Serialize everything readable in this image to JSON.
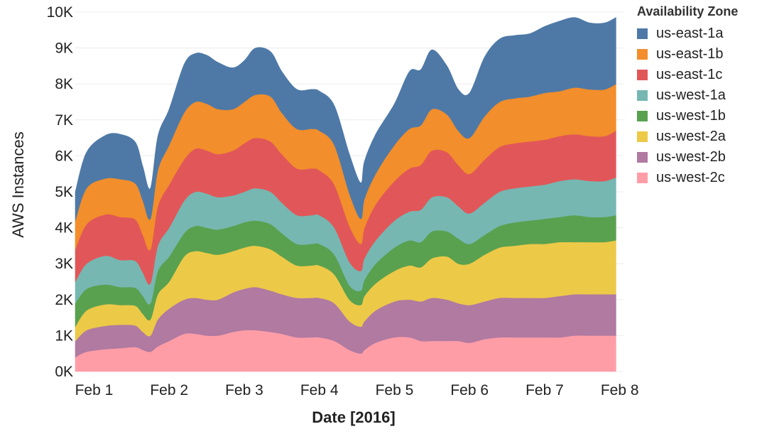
{
  "chart_data": {
    "type": "area",
    "stacked": true,
    "xlabel": "Date [2016]",
    "ylabel": "AWS Instances",
    "ylim": [
      0,
      10000
    ],
    "xlim": [
      -0.25,
      7.05
    ],
    "x_ticks": [
      {
        "value": 0,
        "label": "Feb 1"
      },
      {
        "value": 1,
        "label": "Feb 2"
      },
      {
        "value": 2,
        "label": "Feb 3"
      },
      {
        "value": 3,
        "label": "Feb 4"
      },
      {
        "value": 4,
        "label": "Feb 5"
      },
      {
        "value": 5,
        "label": "Feb 6"
      },
      {
        "value": 6,
        "label": "Feb 7"
      },
      {
        "value": 7,
        "label": "Feb 8"
      }
    ],
    "y_ticks": [
      {
        "value": 0,
        "label": "0K"
      },
      {
        "value": 1000,
        "label": "1K"
      },
      {
        "value": 2000,
        "label": "2K"
      },
      {
        "value": 3000,
        "label": "3K"
      },
      {
        "value": 4000,
        "label": "4K"
      },
      {
        "value": 5000,
        "label": "5K"
      },
      {
        "value": 6000,
        "label": "6K"
      },
      {
        "value": 7000,
        "label": "7K"
      },
      {
        "value": 8000,
        "label": "8K"
      },
      {
        "value": 9000,
        "label": "9K"
      },
      {
        "value": 10000,
        "label": "10K"
      }
    ],
    "x": [
      -0.25,
      -0.1,
      0.15,
      0.35,
      0.55,
      0.65,
      0.75,
      0.85,
      1.0,
      1.2,
      1.35,
      1.5,
      1.65,
      1.85,
      2.0,
      2.15,
      2.35,
      2.5,
      2.7,
      2.9,
      3.0,
      3.2,
      3.4,
      3.55,
      3.6,
      3.75,
      4.0,
      4.2,
      4.35,
      4.5,
      4.7,
      4.85,
      5.0,
      5.2,
      5.4,
      5.6,
      5.8,
      6.0,
      6.2,
      6.4,
      6.6,
      6.8,
      6.95
    ],
    "series": [
      {
        "name": "us-west-2c",
        "color": "#ff9da7",
        "values": [
          400,
          550,
          620,
          650,
          680,
          600,
          550,
          700,
          850,
          1050,
          1050,
          1000,
          1000,
          1100,
          1150,
          1150,
          1100,
          1050,
          950,
          950,
          950,
          850,
          600,
          500,
          600,
          800,
          950,
          950,
          850,
          850,
          850,
          850,
          800,
          900,
          950,
          950,
          950,
          950,
          950,
          1000,
          1000,
          1000,
          1000
        ]
      },
      {
        "name": "us-west-2b",
        "color": "#b07aa1",
        "values": [
          450,
          600,
          650,
          650,
          600,
          500,
          450,
          750,
          900,
          950,
          1000,
          1000,
          1000,
          1100,
          1150,
          1200,
          1150,
          1100,
          1100,
          1100,
          1100,
          1050,
          800,
          750,
          800,
          900,
          1000,
          1050,
          1100,
          1200,
          1150,
          1050,
          1050,
          1050,
          1100,
          1100,
          1100,
          1100,
          1150,
          1150,
          1150,
          1150,
          1150
        ]
      },
      {
        "name": "us-west-2a",
        "color": "#edc948",
        "values": [
          400,
          550,
          600,
          550,
          550,
          500,
          450,
          700,
          750,
          1200,
          1300,
          1300,
          1250,
          1150,
          1150,
          1150,
          1150,
          1050,
          900,
          900,
          900,
          800,
          600,
          600,
          700,
          750,
          850,
          950,
          950,
          1100,
          1200,
          1100,
          1150,
          1300,
          1400,
          1450,
          1500,
          1500,
          1500,
          1450,
          1450,
          1450,
          1500
        ]
      },
      {
        "name": "us-west-1b",
        "color": "#59a14f",
        "values": [
          650,
          600,
          550,
          500,
          500,
          500,
          450,
          650,
          700,
          650,
          700,
          700,
          700,
          700,
          700,
          700,
          700,
          650,
          600,
          600,
          600,
          550,
          400,
          400,
          450,
          550,
          650,
          700,
          700,
          750,
          700,
          700,
          550,
          550,
          600,
          650,
          650,
          700,
          700,
          750,
          700,
          700,
          700
        ]
      },
      {
        "name": "us-west-1a",
        "color": "#76b7b2",
        "values": [
          600,
          700,
          800,
          750,
          750,
          650,
          550,
          700,
          800,
          900,
          950,
          950,
          900,
          850,
          850,
          900,
          900,
          850,
          800,
          800,
          800,
          750,
          650,
          550,
          600,
          650,
          750,
          800,
          900,
          950,
          950,
          900,
          850,
          900,
          950,
          950,
          950,
          950,
          1000,
          1000,
          1000,
          1000,
          1050
        ]
      },
      {
        "name": "us-east-1c",
        "color": "#e15759",
        "values": [
          900,
          1100,
          1150,
          1200,
          1150,
          1050,
          950,
          1100,
          1200,
          1150,
          1200,
          1200,
          1200,
          1250,
          1350,
          1400,
          1400,
          1350,
          1300,
          1300,
          1250,
          1200,
          1000,
          750,
          850,
          1000,
          1100,
          1200,
          1250,
          1300,
          1250,
          1150,
          1100,
          1200,
          1250,
          1250,
          1250,
          1250,
          1250,
          1250,
          1250,
          1250,
          1300
        ]
      },
      {
        "name": "us-east-1b",
        "color": "#f28e2b",
        "values": [
          800,
          1000,
          1000,
          1050,
          1000,
          950,
          850,
          1000,
          1100,
          1300,
          1300,
          1300,
          1250,
          1150,
          1150,
          1200,
          1250,
          1150,
          1100,
          1100,
          1100,
          1100,
          900,
          700,
          800,
          850,
          1000,
          1100,
          1100,
          1150,
          1050,
          950,
          1000,
          1200,
          1250,
          1250,
          1250,
          1300,
          1250,
          1300,
          1300,
          1300,
          1300
        ]
      },
      {
        "name": "us-east-1a",
        "color": "#4e79a7",
        "values": [
          800,
          1000,
          1200,
          1250,
          1150,
          950,
          850,
          950,
          1000,
          1350,
          1350,
          1350,
          1300,
          1150,
          1150,
          1300,
          1250,
          1150,
          1100,
          1100,
          1100,
          1100,
          1100,
          1000,
          1050,
          1100,
          1150,
          1600,
          1550,
          1650,
          1350,
          1150,
          1250,
          1650,
          1750,
          1750,
          1750,
          1850,
          1950,
          1950,
          1850,
          1850,
          1850
        ]
      }
    ]
  }
}
